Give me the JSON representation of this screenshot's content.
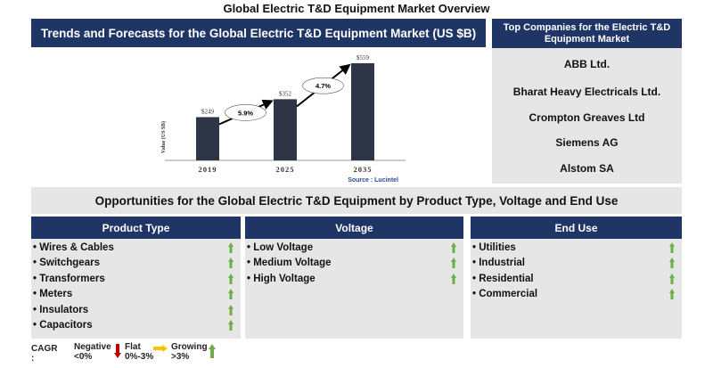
{
  "title": "Global Electric T&D Equipment Market Overview",
  "chart_panel": {
    "header": "Trends and Forecasts for the Global Electric T&D Equipment Market (US $B)"
  },
  "chart_data": {
    "type": "bar",
    "categories": [
      "2019",
      "2025",
      "2035"
    ],
    "values": [
      249,
      352,
      559
    ],
    "data_labels": [
      "$249",
      "$352",
      "$559"
    ],
    "ylabel": "Value (US $B)",
    "cagr_annotations": [
      "5.9%",
      "4.7%"
    ],
    "source": "Source : Lucintel",
    "bar_color": "#2e3547"
  },
  "companies": {
    "header": "Top Companies for the Electric T&D Equipment Market",
    "items": [
      "ABB Ltd.",
      "Bharat Heavy Electricals Ltd.",
      "Crompton Greaves Ltd",
      "Siemens AG",
      "Alstom SA"
    ]
  },
  "opportunities": {
    "header": "Opportunities for the Global Electric T&D Equipment by Product Type, Voltage and End Use",
    "columns": [
      {
        "title": "Product Type",
        "items": [
          "Wires & Cables",
          "Switchgears",
          "Transformers",
          "Meters",
          "Insulators",
          "Capacitors"
        ],
        "trend": "growing"
      },
      {
        "title": "Voltage",
        "items": [
          "Low Voltage",
          "Medium Voltage",
          "High Voltage"
        ],
        "trend": "growing"
      },
      {
        "title": "End Use",
        "items": [
          "Utilities",
          "Industrial",
          "Residential",
          "Commercial"
        ],
        "trend": "growing"
      }
    ]
  },
  "legend": {
    "label": "CAGR :",
    "negative": [
      "Negative",
      "<0%"
    ],
    "flat": [
      "Flat",
      "0%-3%"
    ],
    "growing": [
      "Growing",
      ">3%"
    ],
    "colors": {
      "negative": "#c00000",
      "flat": "#ffc000",
      "growing": "#70ad47"
    }
  }
}
